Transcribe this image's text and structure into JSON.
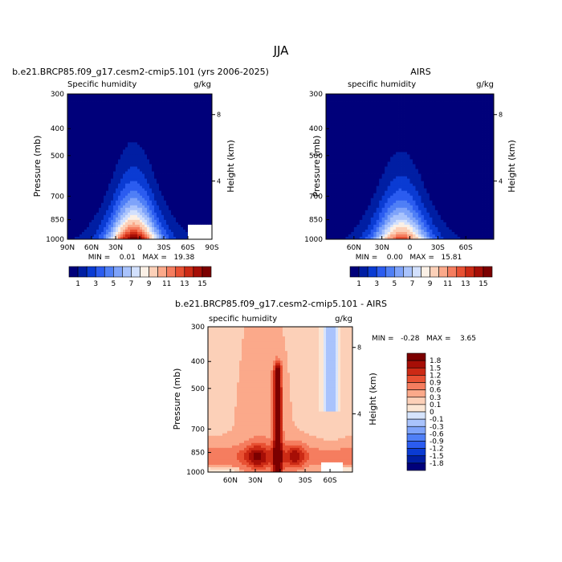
{
  "page": {
    "title": "JJA"
  },
  "chart_data": [
    {
      "type": "heatmap",
      "id": "model",
      "title": "b.e21.BRCP85.f09_g17.cesm2-cmip5.101 (yrs 2006-2025)",
      "subtitle_left": "Specific humidity",
      "subtitle_right": "g/kg",
      "xlabel": "",
      "ylabel": "Pressure (mb)",
      "ylabel_right": "Height (km)",
      "x_ticks": [
        "90N",
        "60N",
        "30N",
        "0",
        "30S",
        "60S",
        "90S"
      ],
      "y_ticks": [
        "300",
        "400",
        "500",
        "700",
        "850",
        "1000"
      ],
      "right_ticks": [
        "8",
        "4"
      ],
      "stats": "MIN =    0.01   MAX =   19.38",
      "min": 0.01,
      "max": 19.38,
      "colorbar_id": "abs",
      "missing_box_lat": [
        60,
        90
      ],
      "missing_box_p": [
        880,
        1000
      ],
      "grid": false
    },
    {
      "type": "heatmap",
      "id": "obs",
      "title": "AIRS",
      "subtitle_left": "specific humidity",
      "subtitle_right": "g/kg",
      "xlabel": "",
      "ylabel": "Pressure (mb)",
      "ylabel_right": "Height (km)",
      "x_ticks": [
        "60N",
        "30N",
        "0",
        "30S",
        "60S"
      ],
      "y_ticks": [
        "300",
        "400",
        "500",
        "700",
        "850",
        "1000"
      ],
      "right_ticks": [
        "8",
        "4"
      ],
      "stats": "MIN =    0.00   MAX =   15.81",
      "min": 0.0,
      "max": 15.81,
      "colorbar_id": "abs",
      "grid": false
    },
    {
      "type": "heatmap",
      "id": "diff",
      "title": "b.e21.BRCP85.f09_g17.cesm2-cmip5.101 - AIRS",
      "subtitle_left": "specific humidity",
      "subtitle_right": "g/kg",
      "xlabel": "",
      "ylabel": "Pressure (mb)",
      "ylabel_right": "Height (km)",
      "x_ticks": [
        "60N",
        "30N",
        "0",
        "30S",
        "60S"
      ],
      "y_ticks": [
        "300",
        "400",
        "500",
        "700",
        "850",
        "1000"
      ],
      "right_ticks": [
        "8",
        "4"
      ],
      "stats": "MIN =   -0.28   MAX =    3.65",
      "min": -0.28,
      "max": 3.65,
      "colorbar_id": "diff",
      "missing_box_lat": [
        50,
        75
      ],
      "missing_box_p": [
        920,
        1000
      ],
      "grid": false
    }
  ],
  "colorbars": {
    "abs": {
      "orientation": "horizontal",
      "labels": [
        "1",
        "3",
        "5",
        "7",
        "9",
        "11",
        "13",
        "15"
      ],
      "colors": [
        "#00007a",
        "#001ea3",
        "#0a3bd3",
        "#2b5cf0",
        "#4f7ff6",
        "#7ea3fa",
        "#a9c3fc",
        "#d2e0fd",
        "#fbf0e6",
        "#fcd0b8",
        "#fba98a",
        "#f57d5f",
        "#e85133",
        "#cc2a15",
        "#a60e06",
        "#7c0000"
      ]
    },
    "diff": {
      "orientation": "vertical",
      "labels": [
        "1.8",
        "1.5",
        "1.2",
        "0.9",
        "0.6",
        "0.3",
        "0.1",
        "0",
        "-0.1",
        "-0.3",
        "-0.6",
        "-0.9",
        "-1.2",
        "-1.5",
        "-1.8"
      ],
      "colors": [
        "#7c0000",
        "#a60e06",
        "#cc2a15",
        "#e85133",
        "#f57d5f",
        "#fba98a",
        "#fcd0b8",
        "#fbe6d4",
        "#d6e4fd",
        "#a9c3fc",
        "#7ea3fa",
        "#4f7ff6",
        "#2b5cf0",
        "#0a3bd3",
        "#001ea3",
        "#00007a"
      ]
    }
  }
}
